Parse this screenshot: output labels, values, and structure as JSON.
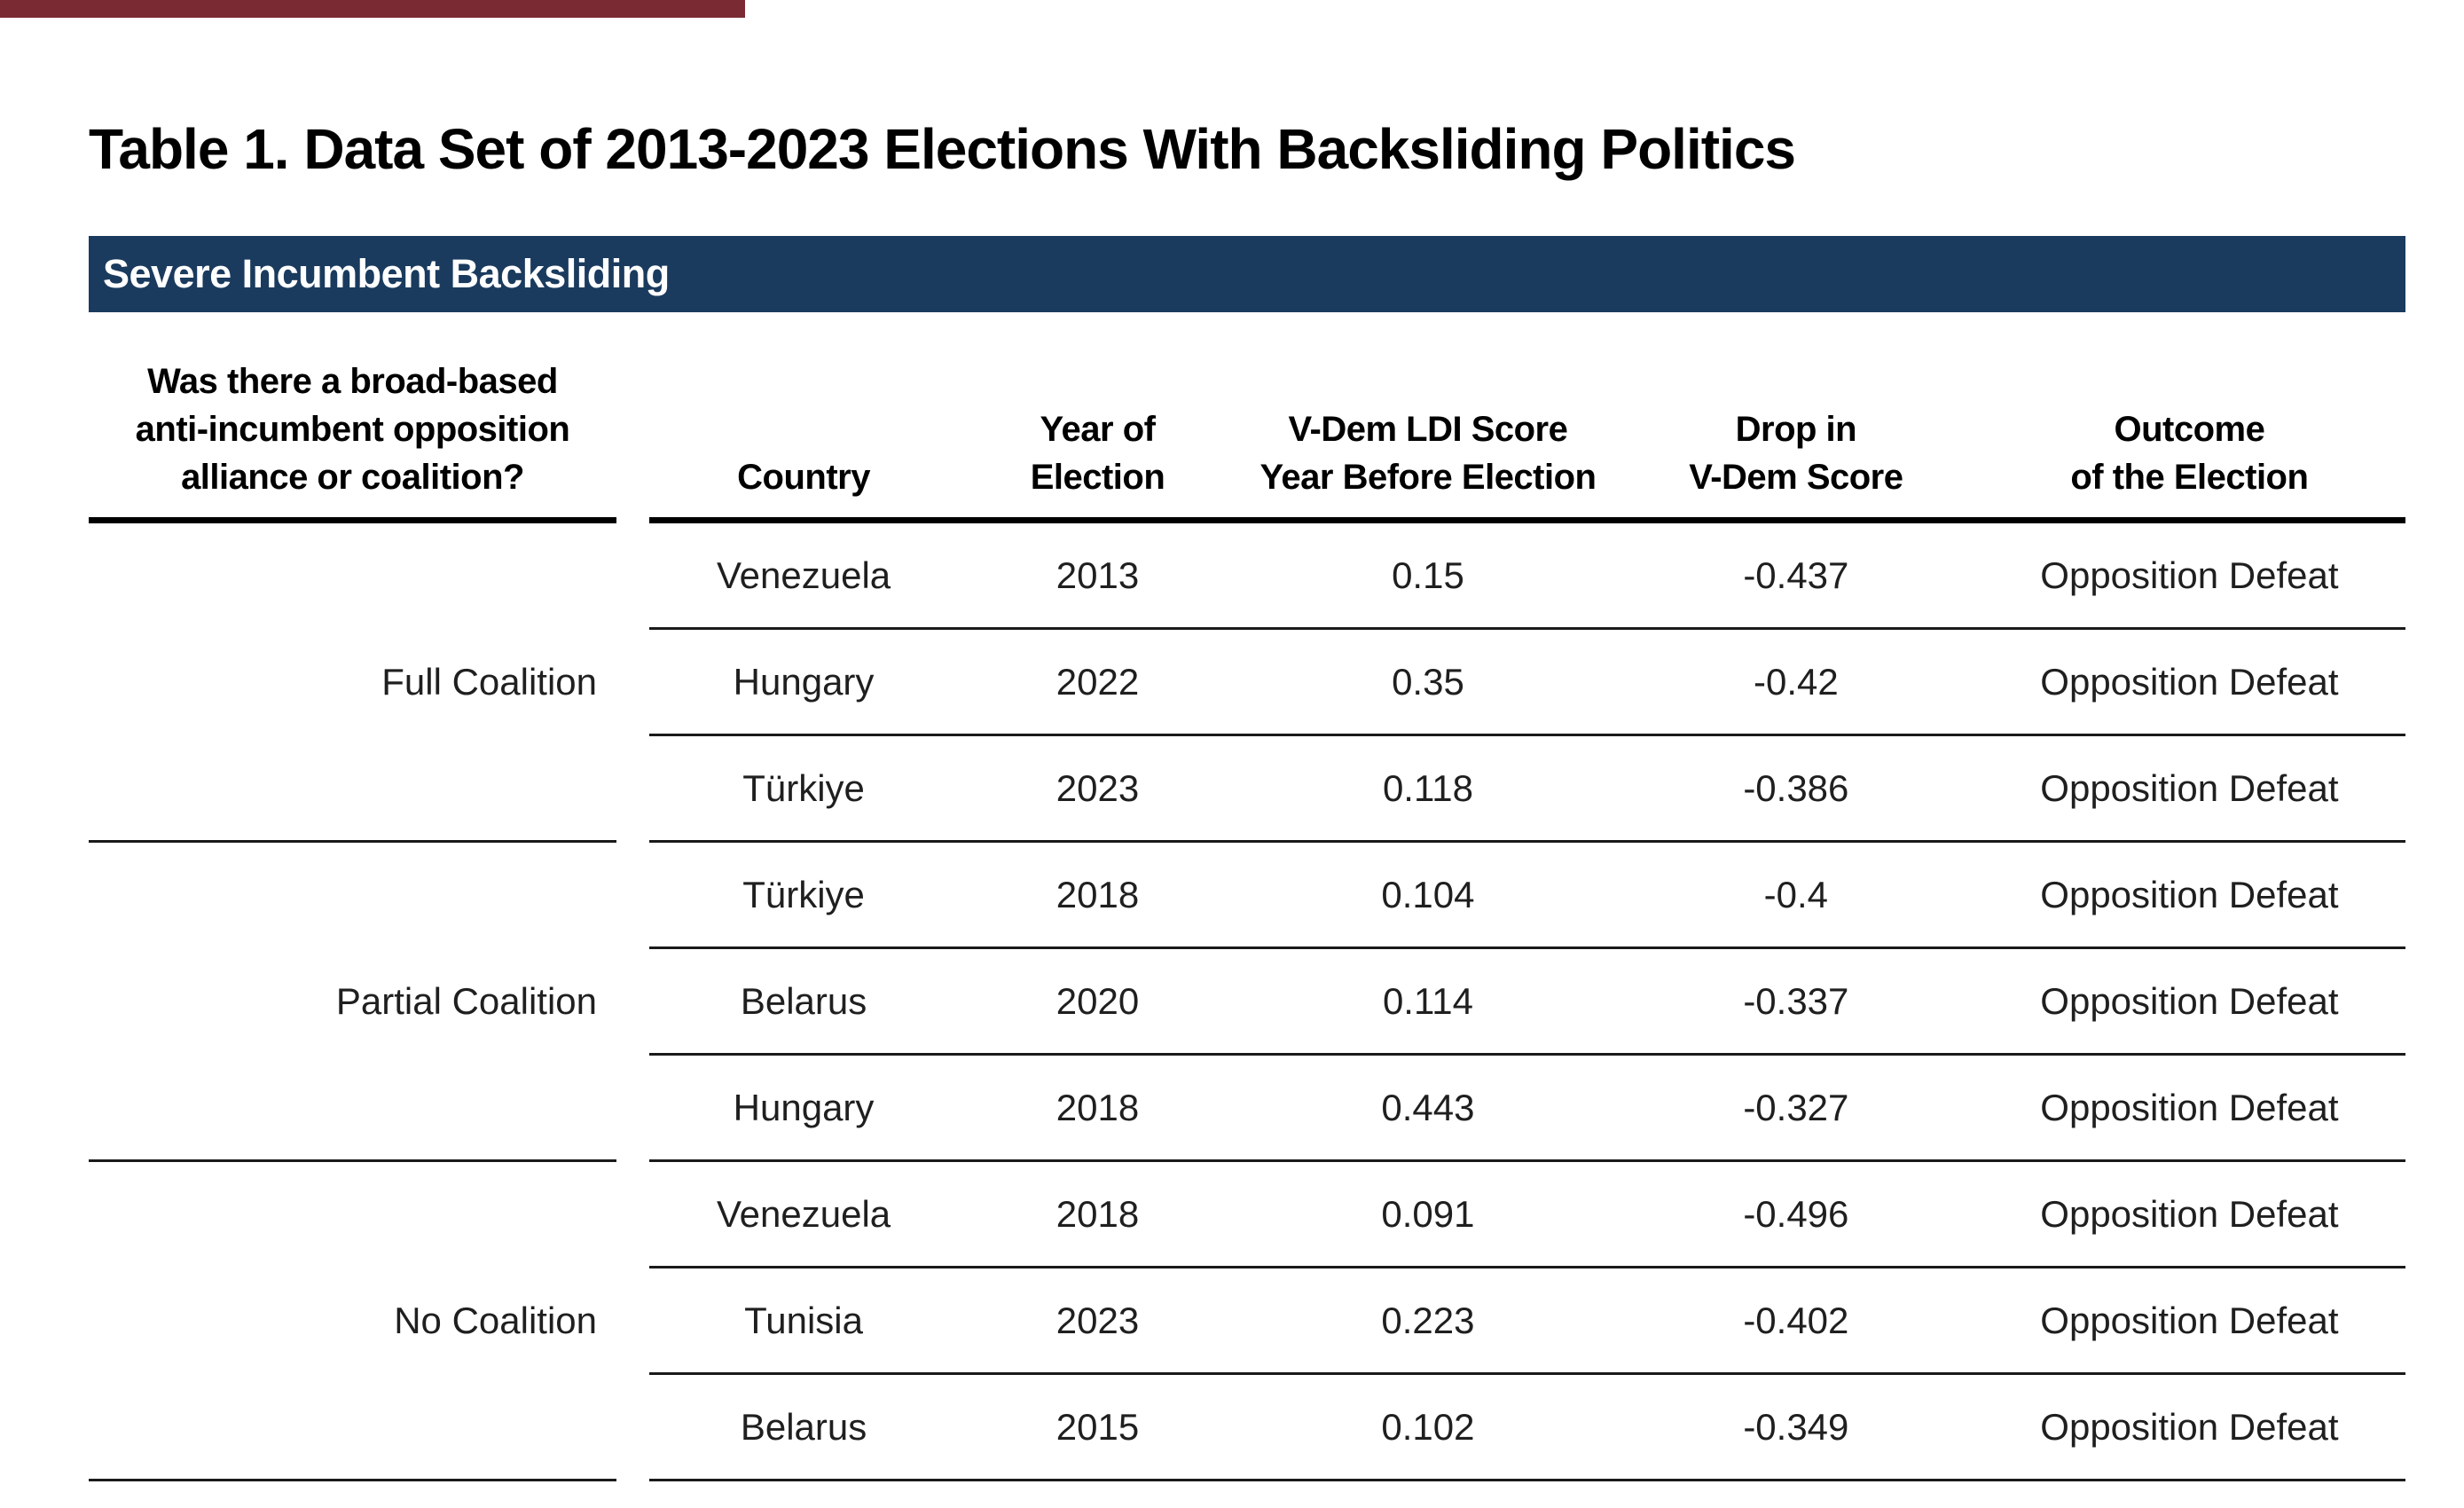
{
  "page": {
    "title": "Table 1. Data Set of 2013-2023 Elections With Backsliding Politics",
    "accent_bar_color": "#7a2a33",
    "background_color": "#ffffff"
  },
  "section_banner": {
    "label": "Severe Incumbent Backsliding",
    "background_color": "#1a3b5e",
    "text_color": "#ffffff"
  },
  "table": {
    "headers": {
      "question": [
        "Was there a broad-based",
        "anti-incumbent opposition",
        "alliance or coalition?"
      ],
      "country": [
        "Country"
      ],
      "year": [
        "Year of",
        "Election"
      ],
      "ldi": [
        "V-Dem LDI Score",
        "Year Before Election"
      ],
      "drop": [
        "Drop in",
        "V-Dem Score"
      ],
      "outcome": [
        "Outcome",
        "of the Election"
      ]
    },
    "groups": [
      {
        "label": "Full Coalition",
        "rows": [
          {
            "country": "Venezuela",
            "year": "2013",
            "ldi": "0.15",
            "drop": "-0.437",
            "outcome": "Opposition Defeat"
          },
          {
            "country": "Hungary",
            "year": "2022",
            "ldi": "0.35",
            "drop": "-0.42",
            "outcome": "Opposition Defeat"
          },
          {
            "country": "Türkiye",
            "year": "2023",
            "ldi": "0.118",
            "drop": "-0.386",
            "outcome": "Opposition Defeat"
          }
        ]
      },
      {
        "label": "Partial Coalition",
        "rows": [
          {
            "country": "Türkiye",
            "year": "2018",
            "ldi": "0.104",
            "drop": "-0.4",
            "outcome": "Opposition Defeat"
          },
          {
            "country": "Belarus",
            "year": "2020",
            "ldi": "0.114",
            "drop": "-0.337",
            "outcome": "Opposition Defeat"
          },
          {
            "country": "Hungary",
            "year": "2018",
            "ldi": "0.443",
            "drop": "-0.327",
            "outcome": "Opposition Defeat"
          }
        ]
      },
      {
        "label": "No Coalition",
        "rows": [
          {
            "country": "Venezuela",
            "year": "2018",
            "ldi": "0.091",
            "drop": "-0.496",
            "outcome": "Opposition Defeat"
          },
          {
            "country": "Tunisia",
            "year": "2023",
            "ldi": "0.223",
            "drop": "-0.402",
            "outcome": "Opposition Defeat"
          },
          {
            "country": "Belarus",
            "year": "2015",
            "ldi": "0.102",
            "drop": "-0.349",
            "outcome": "Opposition Defeat"
          }
        ]
      }
    ]
  },
  "chart_data": {
    "type": "table",
    "title": "Table 1. Data Set of 2013-2023 Elections With Backsliding Politics",
    "section": "Severe Incumbent Backsliding",
    "columns": [
      "Was there a broad-based anti-incumbent opposition alliance or coalition?",
      "Country",
      "Year of Election",
      "V-Dem LDI Score Year Before Election",
      "Drop in V-Dem Score",
      "Outcome of the Election"
    ],
    "rows": [
      [
        "Full Coalition",
        "Venezuela",
        2013,
        0.15,
        -0.437,
        "Opposition Defeat"
      ],
      [
        "Full Coalition",
        "Hungary",
        2022,
        0.35,
        -0.42,
        "Opposition Defeat"
      ],
      [
        "Full Coalition",
        "Türkiye",
        2023,
        0.118,
        -0.386,
        "Opposition Defeat"
      ],
      [
        "Partial Coalition",
        "Türkiye",
        2018,
        0.104,
        -0.4,
        "Opposition Defeat"
      ],
      [
        "Partial Coalition",
        "Belarus",
        2020,
        0.114,
        -0.337,
        "Opposition Defeat"
      ],
      [
        "Partial Coalition",
        "Hungary",
        2018,
        0.443,
        -0.327,
        "Opposition Defeat"
      ],
      [
        "No Coalition",
        "Venezuela",
        2018,
        0.091,
        -0.496,
        "Opposition Defeat"
      ],
      [
        "No Coalition",
        "Tunisia",
        2023,
        0.223,
        -0.402,
        "Opposition Defeat"
      ],
      [
        "No Coalition",
        "Belarus",
        2015,
        0.102,
        -0.349,
        "Opposition Defeat"
      ]
    ]
  }
}
